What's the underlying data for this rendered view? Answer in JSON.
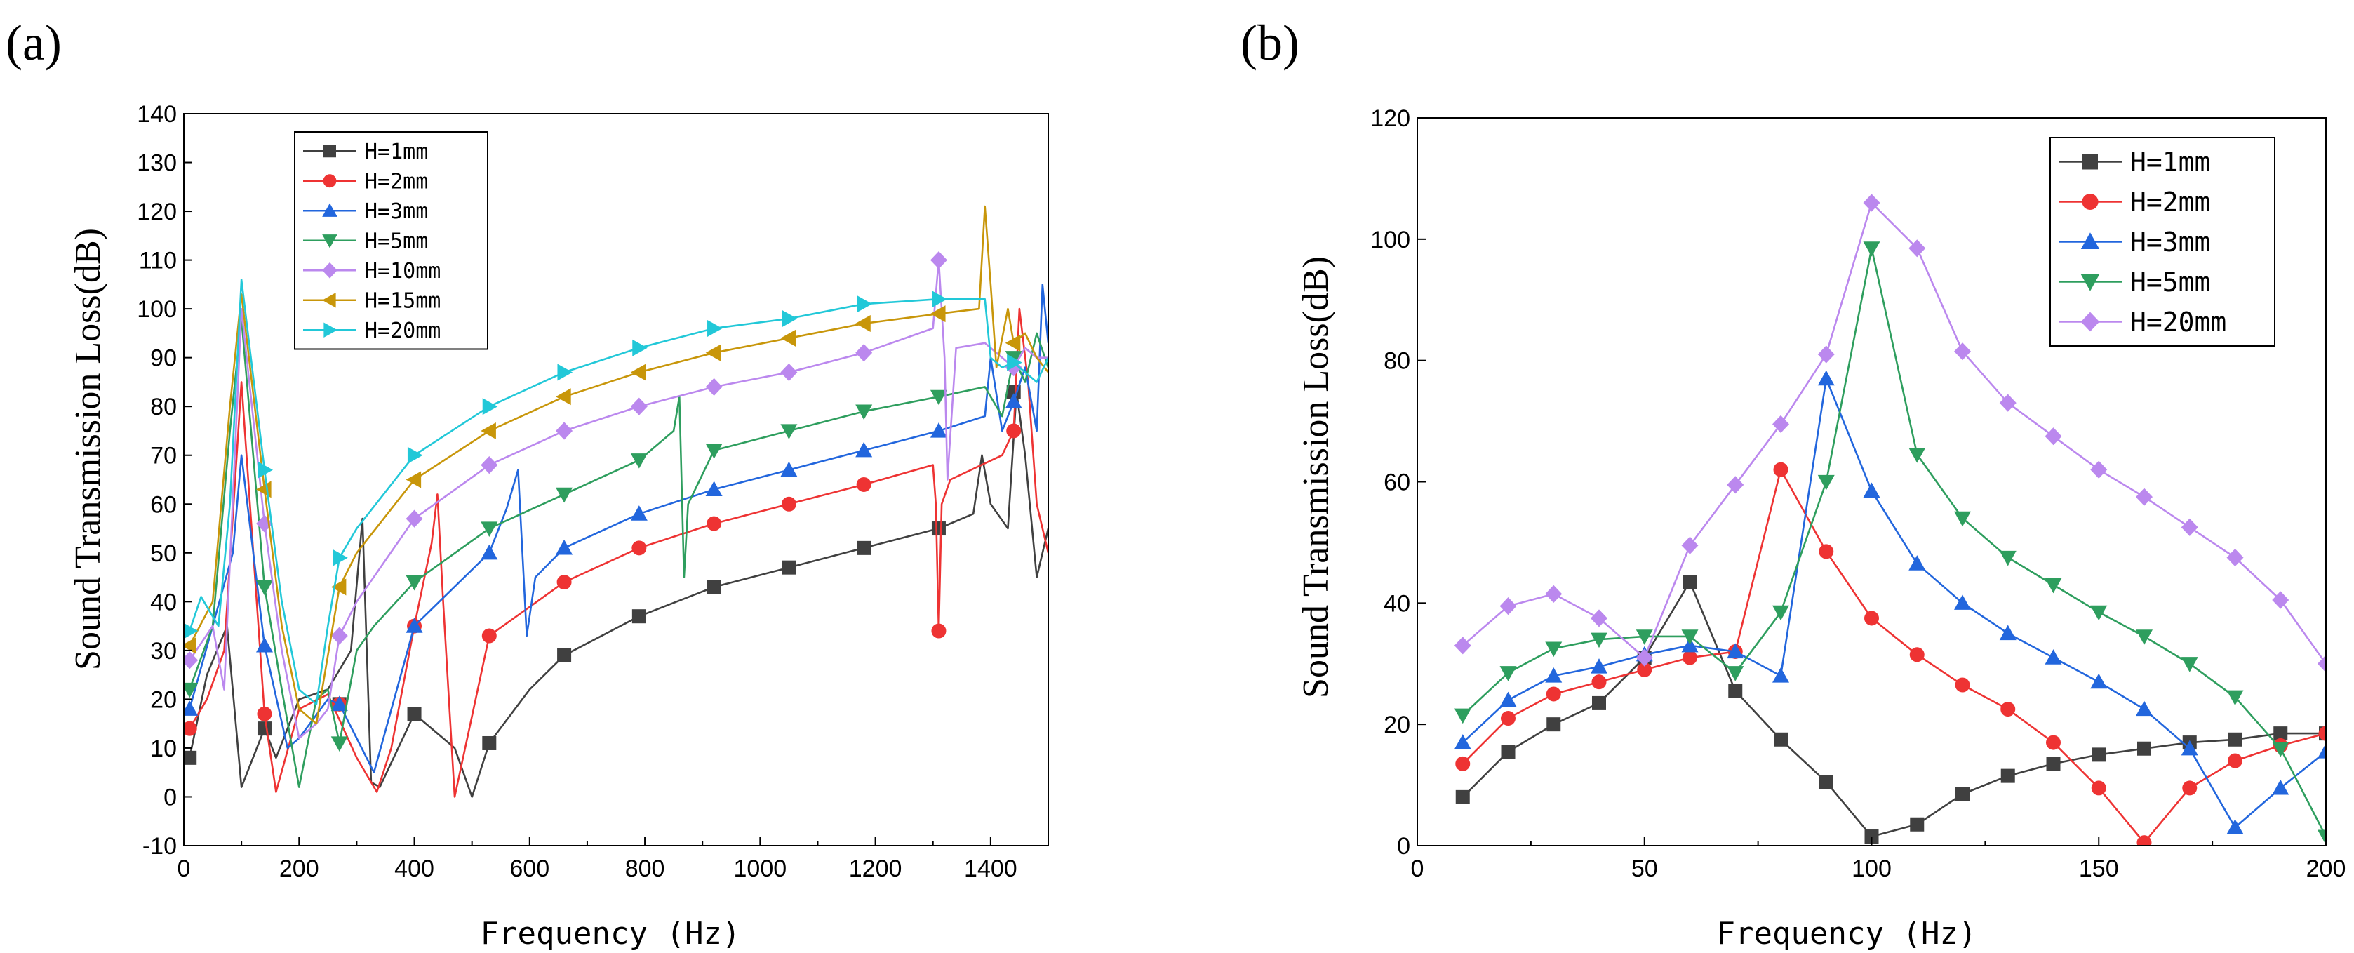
{
  "chart_data": [
    {
      "type": "line",
      "panel_label": "(a)",
      "xlabel": "Frequency (Hz)",
      "ylabel": "Sound Transmission Loss(dB)",
      "xlim": [
        0,
        1500
      ],
      "ylim": [
        -10,
        140
      ],
      "xticks": [
        0,
        200,
        400,
        600,
        800,
        1000,
        1200,
        1400
      ],
      "yticks": [
        -10,
        0,
        10,
        20,
        30,
        40,
        50,
        60,
        70,
        80,
        90,
        100,
        110,
        120,
        130,
        140
      ],
      "legend_position": "top-left",
      "series": [
        {
          "name": "H=1mm",
          "color": "#404040",
          "marker": "square",
          "x": [
            10,
            40,
            75,
            100,
            140,
            160,
            200,
            250,
            290,
            310,
            325,
            340,
            400,
            470,
            500,
            530,
            600,
            660,
            790,
            920,
            1050,
            1180,
            1310,
            1370,
            1385,
            1400,
            1430,
            1445,
            1460,
            1480,
            1500
          ],
          "y": [
            8,
            25,
            35,
            2,
            14,
            8,
            20,
            22,
            30,
            57,
            3,
            2,
            17,
            10,
            0,
            11,
            22,
            29,
            37,
            43,
            47,
            51,
            55,
            58,
            70,
            60,
            55,
            83,
            70,
            45,
            55
          ],
          "marker_x": [
            10,
            140,
            270,
            400,
            530,
            660,
            790,
            920,
            1050,
            1180,
            1310,
            1440
          ],
          "marker_y": [
            8,
            14,
            19,
            17,
            11,
            29,
            37,
            43,
            47,
            51,
            55,
            83
          ]
        },
        {
          "name": "H=2mm",
          "color": "#ee3333",
          "marker": "circle",
          "x": [
            10,
            40,
            70,
            100,
            140,
            160,
            200,
            250,
            300,
            335,
            360,
            400,
            430,
            440,
            450,
            470,
            530,
            660,
            790,
            920,
            1050,
            1180,
            1300,
            1305,
            1310,
            1315,
            1330,
            1420,
            1440,
            1450,
            1465,
            1480,
            1500
          ],
          "y": [
            14,
            20,
            30,
            85,
            17,
            1,
            18,
            21,
            8,
            1,
            10,
            35,
            52,
            62,
            40,
            0,
            33,
            44,
            51,
            56,
            60,
            64,
            68,
            60,
            34,
            60,
            65,
            70,
            75,
            100,
            85,
            60,
            50
          ],
          "marker_x": [
            10,
            140,
            270,
            400,
            530,
            660,
            790,
            920,
            1050,
            1180,
            1310,
            1440
          ],
          "marker_y": [
            14,
            17,
            19,
            35,
            33,
            44,
            51,
            56,
            60,
            64,
            34,
            75
          ]
        },
        {
          "name": "H=3mm",
          "color": "#2266dd",
          "marker": "triangle-up",
          "x": [
            10,
            50,
            85,
            100,
            140,
            180,
            200,
            250,
            270,
            300,
            330,
            400,
            530,
            560,
            580,
            595,
            610,
            660,
            790,
            920,
            1050,
            1180,
            1310,
            1390,
            1400,
            1420,
            1440,
            1460,
            1480,
            1490,
            1500
          ],
          "y": [
            18,
            35,
            50,
            70,
            31,
            10,
            12,
            20,
            19,
            12,
            5,
            35,
            50,
            59,
            67,
            33,
            45,
            51,
            58,
            63,
            67,
            71,
            75,
            78,
            90,
            75,
            81,
            88,
            75,
            105,
            93
          ],
          "marker_x": [
            10,
            140,
            270,
            400,
            530,
            660,
            790,
            920,
            1050,
            1180,
            1310,
            1440
          ],
          "marker_y": [
            18,
            31,
            19,
            35,
            50,
            51,
            58,
            63,
            67,
            71,
            75,
            81
          ]
        },
        {
          "name": "H=5mm",
          "color": "#2e9e5e",
          "marker": "triangle-down",
          "x": [
            10,
            50,
            80,
            100,
            140,
            170,
            200,
            230,
            250,
            270,
            300,
            330,
            400,
            530,
            660,
            790,
            850,
            860,
            868,
            875,
            920,
            1050,
            1180,
            1310,
            1390,
            1420,
            1440,
            1460,
            1480,
            1500
          ],
          "y": [
            22,
            35,
            75,
            98,
            43,
            22,
            2,
            20,
            22,
            11,
            30,
            35,
            44,
            55,
            62,
            69,
            75,
            82,
            45,
            60,
            71,
            75,
            79,
            82,
            84,
            78,
            90,
            85,
            95,
            88
          ],
          "marker_x": [
            10,
            140,
            270,
            400,
            530,
            660,
            790,
            920,
            1050,
            1180,
            1310,
            1440
          ],
          "marker_y": [
            22,
            43,
            11,
            44,
            55,
            62,
            69,
            71,
            75,
            79,
            82,
            90
          ]
        },
        {
          "name": "H=10mm",
          "color": "#bb88ee",
          "marker": "diamond",
          "x": [
            10,
            50,
            70,
            100,
            140,
            170,
            200,
            230,
            250,
            270,
            300,
            400,
            530,
            660,
            790,
            920,
            1050,
            1180,
            1300,
            1310,
            1320,
            1325,
            1340,
            1390,
            1440,
            1460,
            1480,
            1500
          ],
          "y": [
            28,
            35,
            22,
            100,
            56,
            30,
            12,
            15,
            18,
            33,
            40,
            57,
            68,
            75,
            80,
            84,
            87,
            91,
            96,
            110,
            90,
            65,
            92,
            93,
            88,
            92,
            90,
            90
          ],
          "marker_x": [
            10,
            140,
            270,
            400,
            530,
            660,
            790,
            920,
            1050,
            1180,
            1310,
            1440
          ],
          "marker_y": [
            28,
            56,
            33,
            57,
            68,
            75,
            80,
            84,
            87,
            91,
            110,
            88
          ]
        },
        {
          "name": "H=15mm",
          "color": "#c8960a",
          "marker": "triangle-left",
          "x": [
            10,
            50,
            80,
            100,
            140,
            170,
            200,
            230,
            270,
            300,
            400,
            530,
            660,
            790,
            920,
            1050,
            1180,
            1310,
            1380,
            1390,
            1400,
            1410,
            1430,
            1440,
            1460,
            1480,
            1500
          ],
          "y": [
            31,
            40,
            80,
            103,
            63,
            35,
            18,
            15,
            43,
            50,
            65,
            75,
            82,
            87,
            91,
            94,
            97,
            99,
            100,
            121,
            105,
            88,
            100,
            93,
            95,
            90,
            87
          ],
          "marker_x": [
            10,
            140,
            270,
            400,
            530,
            660,
            790,
            920,
            1050,
            1180,
            1310,
            1440
          ],
          "marker_y": [
            31,
            63,
            43,
            65,
            75,
            82,
            87,
            91,
            94,
            97,
            99,
            93
          ]
        },
        {
          "name": "H=20mm",
          "color": "#22c8d8",
          "marker": "triangle-right",
          "x": [
            10,
            30,
            60,
            80,
            100,
            140,
            170,
            200,
            230,
            250,
            270,
            300,
            400,
            530,
            660,
            790,
            920,
            1050,
            1180,
            1310,
            1390,
            1400,
            1420,
            1440,
            1460,
            1480,
            1500
          ],
          "y": [
            34,
            41,
            35,
            60,
            106,
            67,
            40,
            22,
            19,
            35,
            49,
            55,
            70,
            80,
            87,
            92,
            96,
            98,
            101,
            102,
            102,
            90,
            88,
            89,
            87,
            85,
            90
          ],
          "marker_x": [
            10,
            140,
            270,
            400,
            530,
            660,
            790,
            920,
            1050,
            1180,
            1310,
            1440
          ],
          "marker_y": [
            34,
            67,
            49,
            70,
            80,
            87,
            92,
            96,
            98,
            101,
            102,
            89
          ]
        }
      ]
    },
    {
      "type": "line",
      "panel_label": "(b)",
      "xlabel": "Frequency (Hz)",
      "ylabel": "Sound Transmission Loss(dB)",
      "xlim": [
        0,
        200
      ],
      "ylim": [
        0,
        120
      ],
      "xticks": [
        0,
        50,
        100,
        150,
        200
      ],
      "yticks": [
        0,
        20,
        40,
        60,
        80,
        100,
        120
      ],
      "legend_position": "top-right",
      "series": [
        {
          "name": "H=1mm",
          "color": "#404040",
          "marker": "square",
          "x": [
            10,
            20,
            30,
            40,
            50,
            60,
            70,
            80,
            90,
            100,
            110,
            120,
            130,
            140,
            150,
            160,
            170,
            180,
            190,
            200
          ],
          "y": [
            8,
            15.5,
            20,
            23.5,
            31,
            43.5,
            25.5,
            17.5,
            10.5,
            1.5,
            3.5,
            8.5,
            11.5,
            13.5,
            15,
            16,
            17,
            17.5,
            18.5,
            18.5
          ]
        },
        {
          "name": "H=2mm",
          "color": "#ee3333",
          "marker": "circle",
          "x": [
            10,
            20,
            30,
            40,
            50,
            60,
            70,
            80,
            90,
            100,
            110,
            120,
            130,
            140,
            150,
            160,
            170,
            180,
            190,
            200
          ],
          "y": [
            13.5,
            21,
            25,
            27,
            29,
            31,
            32,
            62,
            48.5,
            37.5,
            31.5,
            26.5,
            22.5,
            17,
            9.5,
            0.5,
            9.5,
            14,
            16.5,
            18.5
          ]
        },
        {
          "name": "H=3mm",
          "color": "#2266dd",
          "marker": "triangle-up",
          "x": [
            10,
            20,
            30,
            40,
            50,
            60,
            70,
            80,
            90,
            100,
            110,
            120,
            130,
            140,
            150,
            160,
            170,
            180,
            190,
            200
          ],
          "y": [
            17,
            24,
            28,
            29.5,
            31.5,
            33,
            32,
            28,
            77,
            58.5,
            46.5,
            40,
            35,
            31,
            27,
            22.5,
            16,
            3,
            9.5,
            15.5
          ]
        },
        {
          "name": "H=5mm",
          "color": "#2e9e5e",
          "marker": "triangle-down",
          "x": [
            10,
            20,
            30,
            40,
            50,
            60,
            70,
            80,
            90,
            100,
            110,
            120,
            130,
            140,
            150,
            160,
            170,
            180,
            190,
            200
          ],
          "y": [
            21.5,
            28.5,
            32.5,
            34,
            34.5,
            34.5,
            28.5,
            38.5,
            60,
            98.5,
            64.5,
            54,
            47.5,
            43,
            38.5,
            34.5,
            30,
            24.5,
            16,
            1.5
          ]
        },
        {
          "name": "H=20mm",
          "color": "#bb88ee",
          "marker": "diamond",
          "x": [
            10,
            20,
            30,
            40,
            50,
            60,
            70,
            80,
            90,
            100,
            110,
            120,
            130,
            140,
            150,
            160,
            170,
            180,
            190,
            200
          ],
          "y": [
            33,
            39.5,
            41.5,
            37.5,
            31,
            49.5,
            59.5,
            69.5,
            81,
            106,
            98.5,
            81.5,
            73,
            67.5,
            62,
            57.5,
            52.5,
            47.5,
            40.5,
            30
          ]
        }
      ]
    }
  ]
}
